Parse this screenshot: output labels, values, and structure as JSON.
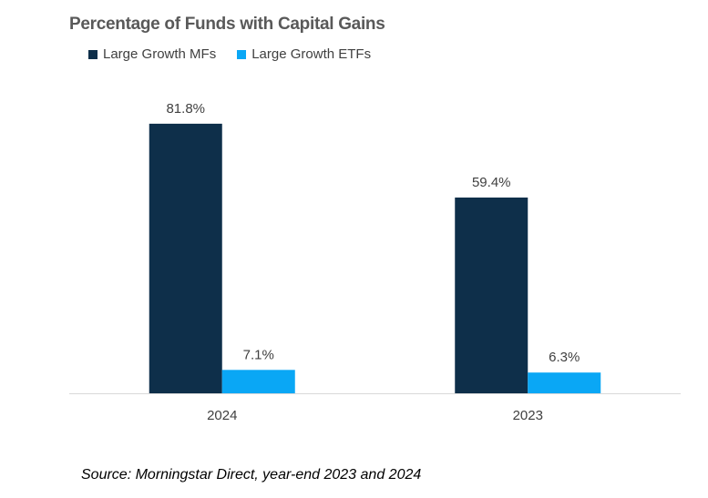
{
  "chart_data": {
    "type": "bar",
    "title": "Percentage of Funds with Capital Gains",
    "categories": [
      "2024",
      "2023"
    ],
    "series": [
      {
        "name": "Large Growth MFs",
        "values": [
          81.8,
          59.4
        ],
        "labels": [
          "81.8%",
          "59.4%"
        ],
        "color": "#0e2f4a"
      },
      {
        "name": "Large Growth ETFs",
        "values": [
          7.1,
          6.3
        ],
        "labels": [
          "7.1%",
          "6.3%"
        ],
        "color": "#0aa7f5"
      }
    ],
    "ylim": [
      0,
      100
    ],
    "grid": false,
    "legend_position": "top-left",
    "axis_color": "#d9d9d9",
    "label_color": "#404040"
  },
  "source_note": "Source: Morningstar Direct, year-end 2023 and 2024"
}
